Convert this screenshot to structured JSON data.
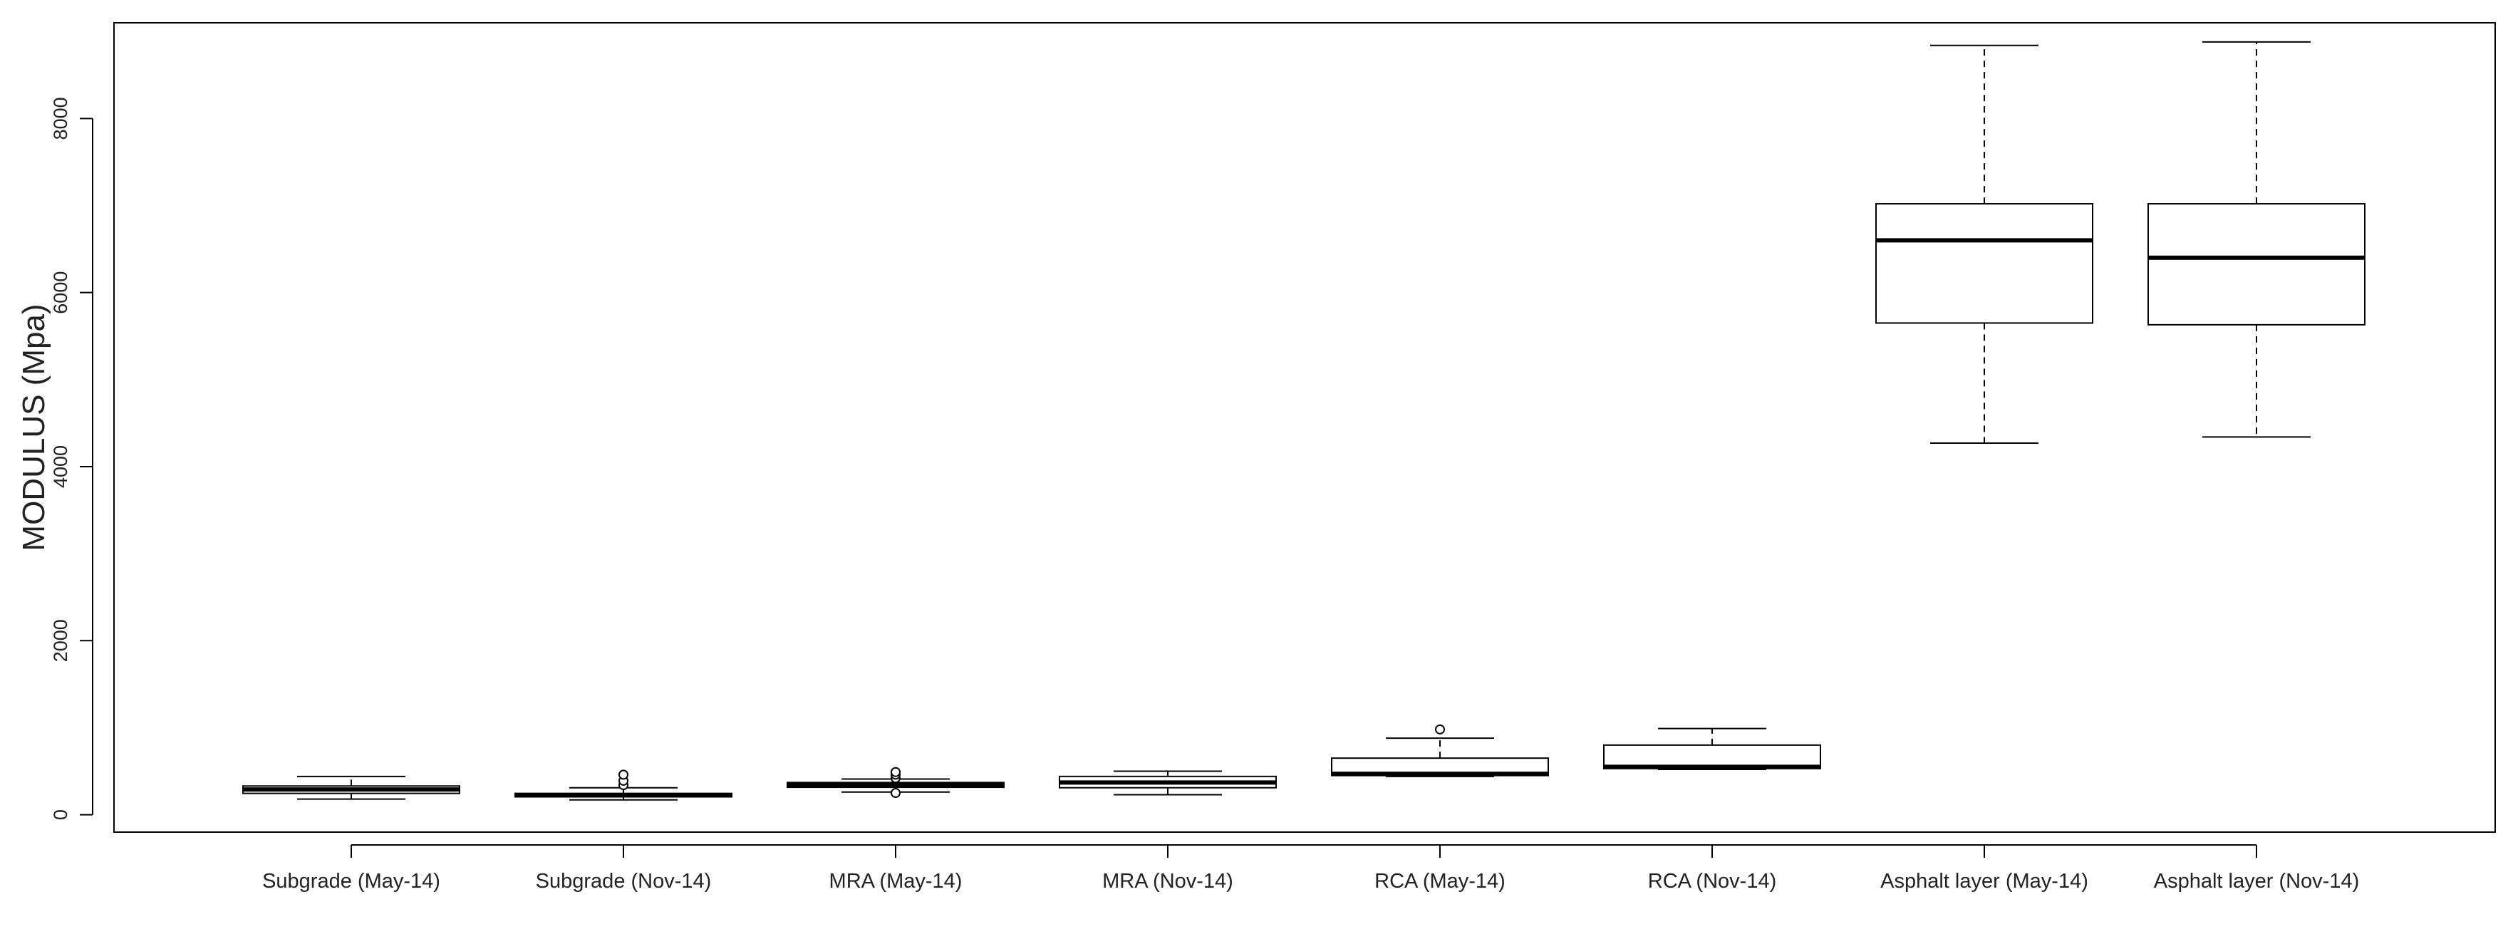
{
  "chart_data": {
    "type": "boxplot",
    "title": "",
    "xlabel": "",
    "ylabel": "MODULUS (Mpa)",
    "ylim": [
      -200,
      9100
    ],
    "yticks": [
      0,
      2000,
      4000,
      6000,
      8000
    ],
    "ytick_labels": [
      "0",
      "2000",
      "4000",
      "6000",
      "8000"
    ],
    "grid": false,
    "legend": "none",
    "categories": [
      "Subgrade (May-14)",
      "Subgrade (Nov-14)",
      "MRA (May-14)",
      "MRA (Nov-14)",
      "RCA (May-14)",
      "RCA (Nov-14)",
      "Asphalt layer (May-14)",
      "Asphalt layer (Nov-14)"
    ],
    "boxes": [
      {
        "whisker_low": 180,
        "q1": 245,
        "median": 290,
        "q3": 330,
        "whisker_high": 440,
        "outliers": []
      },
      {
        "whisker_low": 170,
        "q1": 205,
        "median": 225,
        "q3": 245,
        "whisker_high": 310,
        "outliers": [
          340,
          390,
          460
        ]
      },
      {
        "whisker_low": 260,
        "q1": 315,
        "median": 345,
        "q3": 370,
        "whisker_high": 410,
        "outliers": [
          250,
          420,
          460,
          490
        ]
      },
      {
        "whisker_low": 230,
        "q1": 310,
        "median": 370,
        "q3": 440,
        "whisker_high": 500,
        "outliers": []
      },
      {
        "whisker_low": 440,
        "q1": 450,
        "median": 470,
        "q3": 650,
        "whisker_high": 880,
        "outliers": [
          980
        ]
      },
      {
        "whisker_low": 520,
        "q1": 530,
        "median": 550,
        "q3": 800,
        "whisker_high": 990,
        "outliers": []
      },
      {
        "whisker_low": 4270,
        "q1": 5650,
        "median": 6600,
        "q3": 7020,
        "whisker_high": 8840,
        "outliers": []
      },
      {
        "whisker_low": 4340,
        "q1": 5630,
        "median": 6400,
        "q3": 7020,
        "whisker_high": 8880,
        "outliers": []
      }
    ]
  }
}
